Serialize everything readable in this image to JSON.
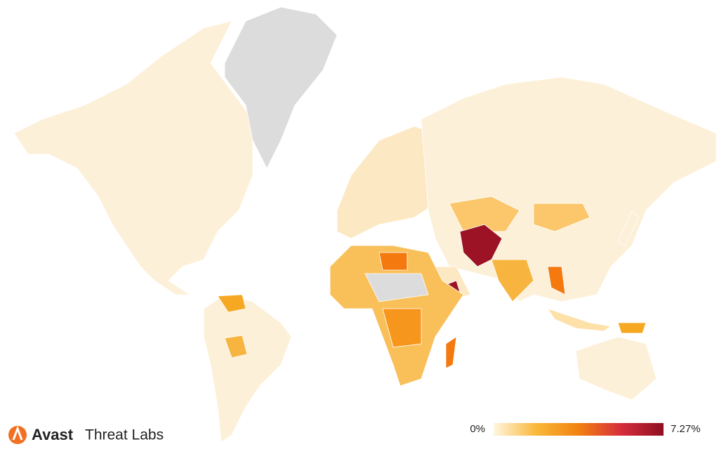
{
  "brand": {
    "name": "Avast",
    "product": "Threat Labs"
  },
  "legend": {
    "min": {
      "value": 0,
      "label": "0%"
    },
    "max": {
      "value": 7.27,
      "label": "7.27%"
    },
    "colors": [
      "#fff6e0",
      "#f9b83a",
      "#f2820f",
      "#d62d3c",
      "#8e0f22"
    ]
  }
}
